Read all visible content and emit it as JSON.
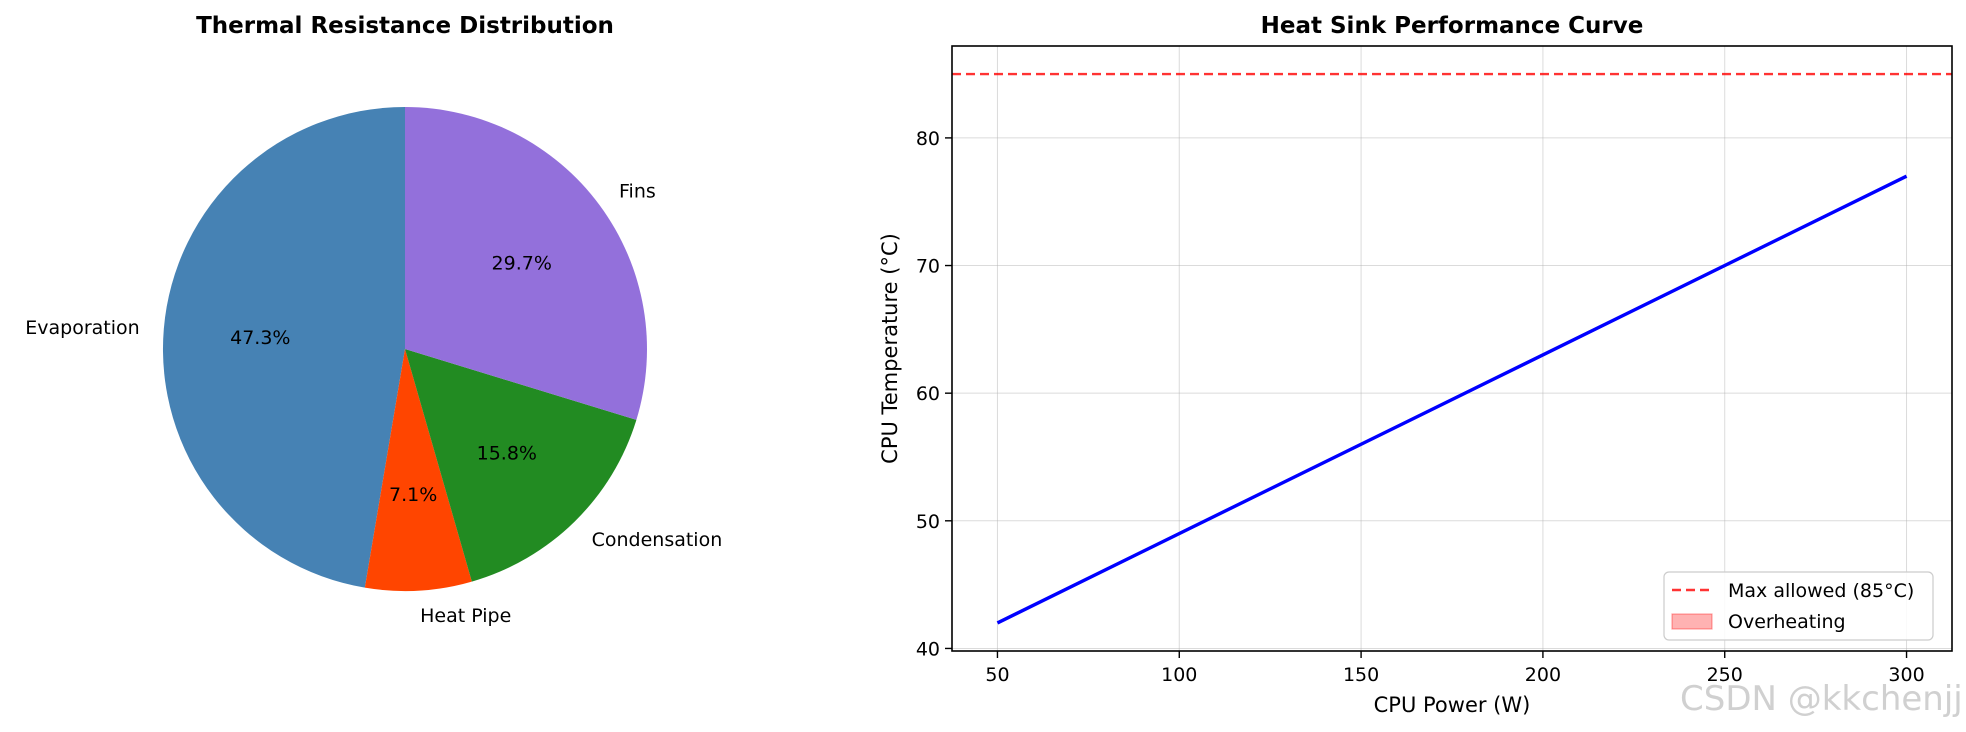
{
  "chart_data": [
    {
      "type": "pie",
      "title": "Thermal Resistance Distribution",
      "start_angle_deg": 90,
      "direction": "counterclockwise",
      "slices": [
        {
          "label": "Evaporation",
          "value": 47.3,
          "pct_label": "47.3%",
          "color": "#4682b4"
        },
        {
          "label": "Heat Pipe",
          "value": 7.1,
          "pct_label": "7.1%",
          "color": "#ff4500"
        },
        {
          "label": "Condensation",
          "value": 15.8,
          "pct_label": "15.8%",
          "color": "#228b22"
        },
        {
          "label": "Fins",
          "value": 29.7,
          "pct_label": "29.7%",
          "color": "#9370db"
        }
      ]
    },
    {
      "type": "line",
      "title": "Heat Sink Performance Curve",
      "xlabel": "CPU Power (W)",
      "ylabel": "CPU Temperature (°C)",
      "xlim": [
        37.5,
        312.5
      ],
      "ylim": [
        39.8,
        87.2
      ],
      "xticks": [
        50,
        100,
        150,
        200,
        250,
        300
      ],
      "yticks": [
        40,
        50,
        60,
        70,
        80
      ],
      "grid": true,
      "series": [
        {
          "name": "CPU Temperature",
          "x": [
            50,
            300
          ],
          "y": [
            42,
            77
          ],
          "color": "#0000ff",
          "style": "solid"
        }
      ],
      "reference_lines": [
        {
          "name": "Max allowed (85°C)",
          "y": 85,
          "color": "#ff0000",
          "style": "dashed"
        }
      ],
      "legend": {
        "position": "lower-right",
        "entries": [
          {
            "label": "Max allowed (85°C)",
            "kind": "dashed-line",
            "color": "#ff0000"
          },
          {
            "label": "Overheating",
            "kind": "patch",
            "color": "#ffb3b3"
          }
        ]
      }
    }
  ],
  "watermark": "CSDN @kkchenjj"
}
